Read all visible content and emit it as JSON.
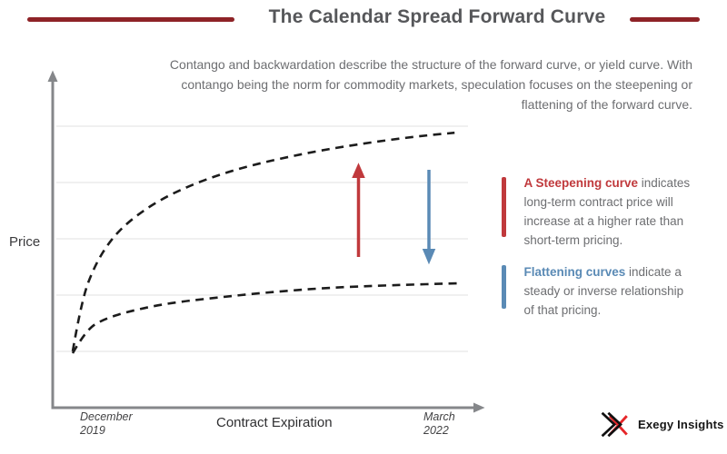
{
  "header": {
    "title": "The Calendar Spread Forward Curve",
    "accent_color": "#8e2327"
  },
  "intro_lines": [
    "Contango and backwardation describe the structure of the forward curve, or yield curve. With",
    "contango being the norm for commodity markets, speculation focuses on the steepening or",
    "flattening of the forward curve."
  ],
  "chart": {
    "y_axis_label": "Price",
    "x_axis_label": "Contract Expiration",
    "x_min_label": "December\n2019",
    "x_max_label": "March\n2022"
  },
  "annotations": {
    "steepening": {
      "color": "#c0393c",
      "highlight": "A Steepening curve",
      "line1_rest": " indicates",
      "lines": [
        "long-term contract price will",
        "increase at a higher rate than",
        "short-term pricing."
      ]
    },
    "flattening": {
      "color": "#5a8ab5",
      "highlight": "Flattening curves",
      "line1_rest": " indicate a",
      "lines": [
        "steady or inverse relationship",
        "of that pricing."
      ]
    }
  },
  "logo": {
    "brand": "Exegy Insights",
    "mark_black": "#111111",
    "mark_red": "#e62629"
  },
  "chart_data": {
    "type": "line",
    "title": "The Calendar Spread Forward Curve",
    "xlabel": "Contract Expiration",
    "ylabel": "Price",
    "x_axis_range_labels": [
      "December 2019",
      "March 2022"
    ],
    "y_tick_labels": [],
    "grid": true,
    "legend_position": "right-side annotations",
    "series": [
      {
        "name": "Steepening forward curve (upper)",
        "style": "dashed",
        "color": "#1c1c1c",
        "x": [
          0,
          2.3,
          5.9,
          10.5,
          16.4,
          24.6,
          35.1,
          46.8,
          60.9,
          74.9,
          86.7,
          98.4
        ],
        "y": [
          20.3,
          38.6,
          51.4,
          61.1,
          68.5,
          75.6,
          81.7,
          86.5,
          90.7,
          93.9,
          96.1,
          97.7
        ]
      },
      {
        "name": "Flattening forward curve (lower)",
        "style": "dashed",
        "color": "#1c1c1c",
        "x": [
          0,
          3.5,
          8.2,
          15.2,
          24.6,
          36.3,
          50.4,
          65.6,
          82.0,
          100
        ],
        "y": [
          19.6,
          28.0,
          31.8,
          34.7,
          37.3,
          39.2,
          41.2,
          42.8,
          43.7,
          44.4
        ]
      }
    ],
    "annotations": [
      {
        "type": "arrow",
        "direction": "up",
        "color": "#c0393c",
        "meaning": "steepening: long-term contract price increases at a higher rate than short-term pricing"
      },
      {
        "type": "arrow",
        "direction": "down",
        "color": "#5a8ab5",
        "meaning": "flattening: steady or inverse relationship of that pricing"
      }
    ]
  }
}
